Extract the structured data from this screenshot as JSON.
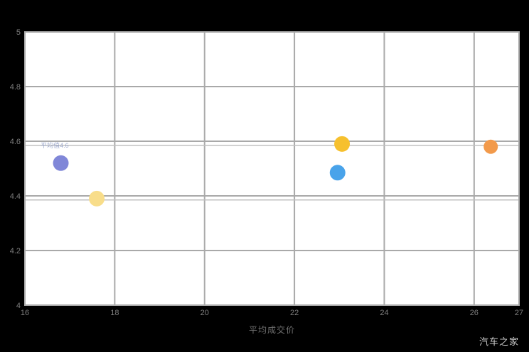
{
  "chart_data": {
    "type": "scatter",
    "title": "",
    "xlabel": "平均成交价",
    "ylabel": "",
    "watermark": "汽车之家",
    "x_domain": [
      16,
      27
    ],
    "y_domain": [
      4,
      5
    ],
    "x_ticks": [
      16,
      18,
      20,
      22,
      24,
      26,
      27
    ],
    "y_ticks": [
      4,
      4.2,
      4.4,
      4.6,
      4.8,
      5
    ],
    "grid": true,
    "reference_lines": [
      4.585,
      4.385
    ],
    "annotation": {
      "text": "平均值4.6",
      "x": 16.35,
      "y": 4.585
    },
    "points": [
      {
        "name": "series-purple",
        "x": 16.8,
        "y": 4.52,
        "r": 11,
        "color": "#8087d8"
      },
      {
        "name": "series-lightyellow",
        "x": 17.6,
        "y": 4.39,
        "r": 11,
        "color": "#f8dd8a"
      },
      {
        "name": "series-blue",
        "x": 22.96,
        "y": 4.485,
        "r": 11,
        "color": "#49a3ea"
      },
      {
        "name": "series-gold",
        "x": 23.06,
        "y": 4.59,
        "r": 11,
        "color": "#f6c02e"
      },
      {
        "name": "series-orange",
        "x": 26.37,
        "y": 4.58,
        "r": 10,
        "color": "#f29a4b"
      }
    ],
    "colors": {
      "page_bg": "#000000",
      "plot_bg": "#ffffff",
      "grid": "#a9a9a9",
      "reference_line": "#c0c0c0",
      "tick_label": "#7d7d7d",
      "annotation_text": "#93a0c9"
    }
  }
}
